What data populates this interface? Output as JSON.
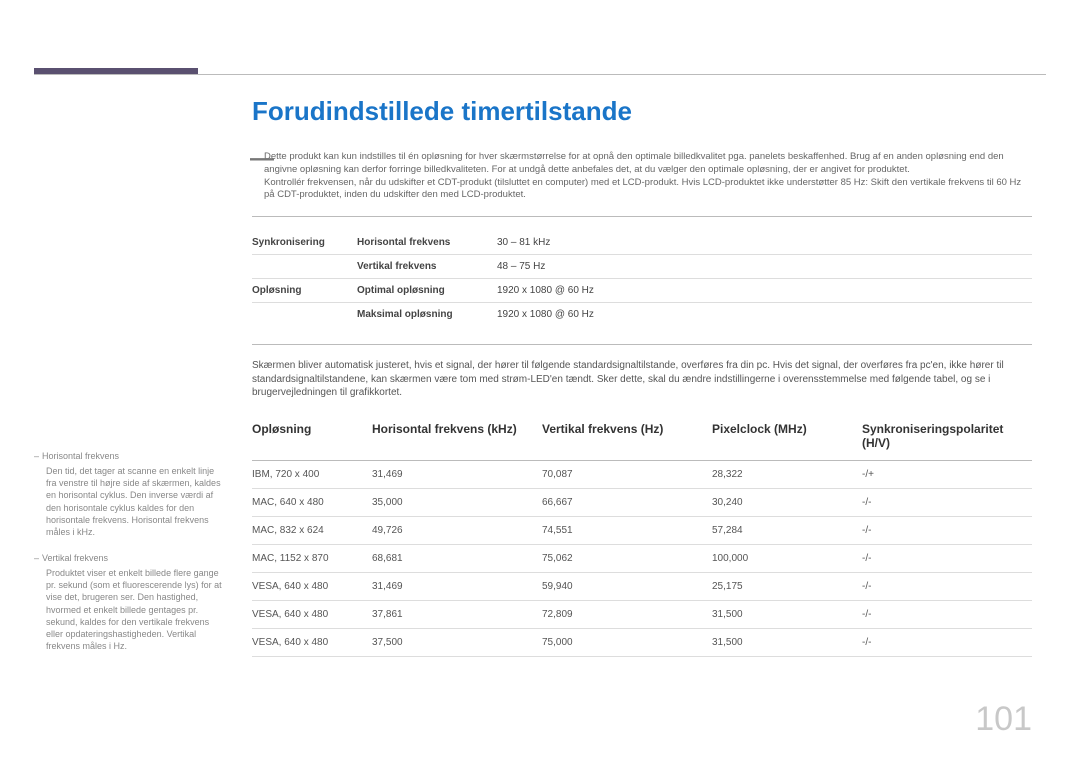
{
  "title": "Forudindstillede timertilstande",
  "intro": {
    "p1": "Dette produkt kan kun indstilles til én opløsning for hver skærmstørrelse for at opnå den optimale billedkvalitet pga. panelets beskaffenhed. Brug af en anden opløsning end den angivne opløsning kan derfor forringe billedkvaliteten. For at undgå dette anbefales det, at du vælger den optimale opløsning, der er angivet for produktet.",
    "p2": "Kontrollér frekvensen, når du udskifter et CDT-produkt (tilsluttet en computer) med et LCD-produkt. Hvis LCD-produktet ikke understøtter 85 Hz: Skift den vertikale frekvens til 60 Hz på CDT-produktet, inden du udskifter den med LCD-produktet."
  },
  "specs": {
    "rows": [
      {
        "group": "Synkronisering",
        "label": "Horisontal frekvens",
        "value": "30 – 81 kHz"
      },
      {
        "group": "",
        "label": "Vertikal frekvens",
        "value": "48 – 75 Hz"
      },
      {
        "group": "Opløsning",
        "label": "Optimal opløsning",
        "value": "1920 x 1080 @ 60 Hz"
      },
      {
        "group": "",
        "label": "Maksimal opløsning",
        "value": "1920 x 1080 @ 60 Hz"
      }
    ]
  },
  "midText": "Skærmen bliver automatisk justeret, hvis et signal, der hører til følgende standardsignaltilstande, overføres fra din pc. Hvis det signal, der overføres fra pc'en, ikke hører til standardsignaltilstandene, kan skærmen være tom med strøm-LED'en tændt. Sker dette, skal du ændre indstillingerne i overensstemmelse med følgende tabel, og se i brugervejledningen til grafikkortet.",
  "timing": {
    "headers": {
      "c0": "Opløsning",
      "c1": "Horisontal frekvens (kHz)",
      "c2": "Vertikal frekvens (Hz)",
      "c3": "Pixelclock (MHz)",
      "c4": "Synkroniseringspolaritet (H/V)"
    },
    "rows": [
      {
        "c0": "IBM, 720 x 400",
        "c1": "31,469",
        "c2": "70,087",
        "c3": "28,322",
        "c4": "-/+"
      },
      {
        "c0": "MAC, 640 x 480",
        "c1": "35,000",
        "c2": "66,667",
        "c3": "30,240",
        "c4": "-/-"
      },
      {
        "c0": "MAC, 832 x 624",
        "c1": "49,726",
        "c2": "74,551",
        "c3": "57,284",
        "c4": "-/-"
      },
      {
        "c0": "MAC, 1152 x 870",
        "c1": "68,681",
        "c2": "75,062",
        "c3": "100,000",
        "c4": "-/-"
      },
      {
        "c0": "VESA, 640 x 480",
        "c1": "31,469",
        "c2": "59,940",
        "c3": "25,175",
        "c4": "-/-"
      },
      {
        "c0": "VESA, 640 x 480",
        "c1": "37,861",
        "c2": "72,809",
        "c3": "31,500",
        "c4": "-/-"
      },
      {
        "c0": "VESA, 640 x 480",
        "c1": "37,500",
        "c2": "75,000",
        "c3": "31,500",
        "c4": "-/-"
      }
    ],
    "colWidths": [
      "120px",
      "170px",
      "170px",
      "150px",
      "auto"
    ]
  },
  "sidebar": {
    "notes": [
      {
        "title": "Horisontal frekvens",
        "body": "Den tid, det tager at scanne en enkelt linje fra venstre til højre side af skærmen, kaldes en horisontal cyklus. Den inverse værdi af den horisontale cyklus kaldes for den horisontale frekvens. Horisontal frekvens måles i kHz."
      },
      {
        "title": "Vertikal frekvens",
        "body": "Produktet viser et enkelt billede flere gange pr. sekund (som et fluorescerende lys) for at vise det, brugeren ser. Den hastighed, hvormed et enkelt billede gentages pr. sekund, kaldes for den vertikale frekvens eller opdateringshastigheden. Vertikal frekvens måles i Hz."
      }
    ]
  },
  "pageNumber": "101",
  "style": {
    "titleColor": "#1a75c8",
    "accentBar": "#5a5070",
    "textGray": "#666666",
    "borderGray": "#dddddd",
    "pageNumColor": "#c8c8c8"
  }
}
